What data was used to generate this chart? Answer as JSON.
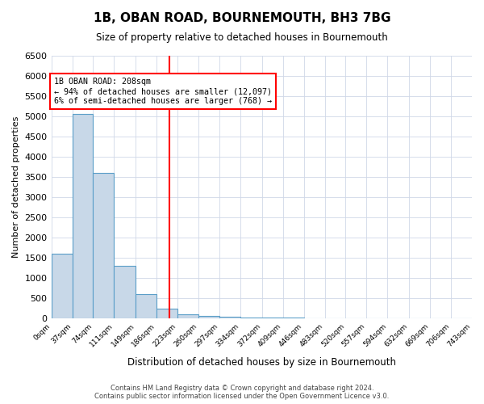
{
  "title": "1B, OBAN ROAD, BOURNEMOUTH, BH3 7BG",
  "subtitle": "Size of property relative to detached houses in Bournemouth",
  "xlabel": "Distribution of detached houses by size in Bournemouth",
  "ylabel": "Number of detached properties",
  "bar_color": "#c8d8e8",
  "bar_edge_color": "#5a9ec8",
  "property_line_x": 208,
  "property_line_color": "red",
  "annotation_line1": "1B OBAN ROAD: 208sqm",
  "annotation_line2": "← 94% of detached houses are smaller (12,097)",
  "annotation_line3": "6% of semi-detached houses are larger (768) →",
  "footer_text": "Contains HM Land Registry data © Crown copyright and database right 2024.\nContains public sector information licensed under the Open Government Licence v3.0.",
  "bin_edges": [
    0,
    37,
    74,
    111,
    149,
    186,
    223,
    260,
    297,
    334,
    372,
    409,
    446,
    483,
    520,
    557,
    594,
    632,
    669,
    706,
    743
  ],
  "bin_labels": [
    "0sqm",
    "37sqm",
    "74sqm",
    "111sqm",
    "149sqm",
    "186sqm",
    "223sqm",
    "260sqm",
    "297sqm",
    "334sqm",
    "372sqm",
    "409sqm",
    "446sqm",
    "483sqm",
    "520sqm",
    "557sqm",
    "594sqm",
    "632sqm",
    "669sqm",
    "706sqm",
    "743sqm"
  ],
  "bar_heights": [
    1600,
    5050,
    3600,
    1300,
    600,
    230,
    100,
    60,
    30,
    20,
    15,
    10,
    8,
    5,
    4,
    3,
    2,
    1,
    1,
    0
  ],
  "ylim": [
    0,
    6500
  ],
  "yticks": [
    0,
    500,
    1000,
    1500,
    2000,
    2500,
    3000,
    3500,
    4000,
    4500,
    5000,
    5500,
    6000,
    6500
  ],
  "background_color": "#ffffff",
  "grid_color": "#d0d8e8"
}
